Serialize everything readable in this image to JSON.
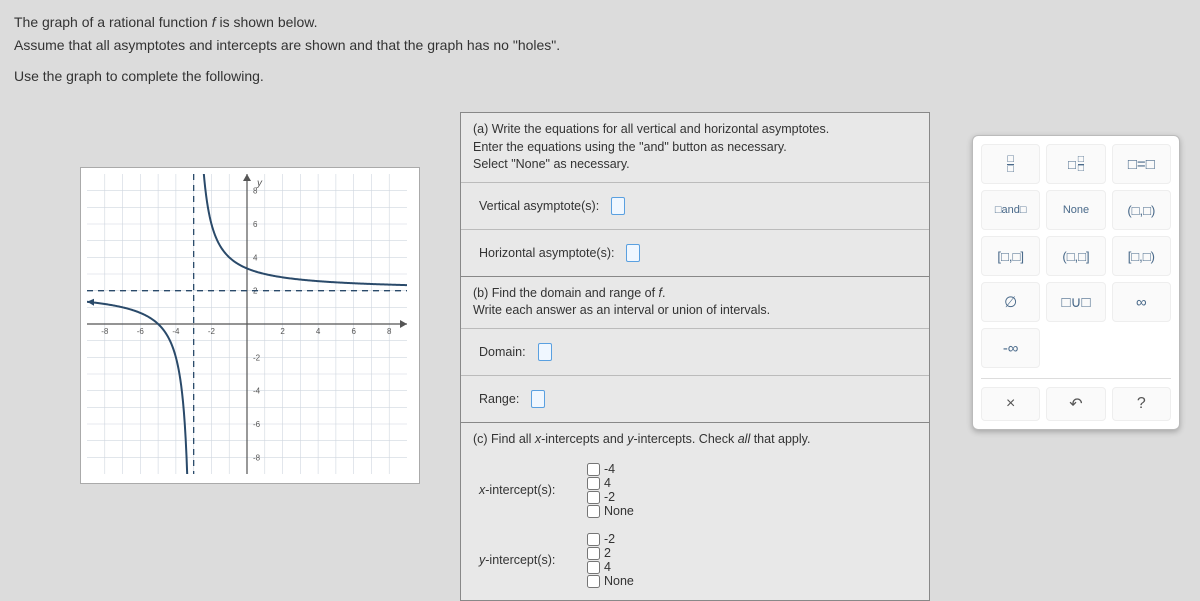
{
  "prompt": {
    "line1a": "The graph of a rational function ",
    "line1b": "f",
    "line1c": " is shown below.",
    "line2": "Assume that all asymptotes and intercepts are shown and that the graph has no \"holes\".",
    "line3": "Use the graph to complete the following."
  },
  "graph": {
    "x_ticks": [
      -8,
      -6,
      -4,
      -2,
      2,
      4,
      6,
      8
    ],
    "y_ticks": [
      8,
      6,
      4,
      2,
      -2,
      -4,
      -6,
      -8
    ],
    "axis_label_y": "y",
    "axis_label_x": "x",
    "grid_color": "#cfd6df",
    "axis_color": "#555",
    "tick_font_size": 8,
    "vertical_asymptote_x": -3,
    "horizontal_asymptote_y": 2,
    "asymptote_color": "#2a4a6a",
    "curve_color": "#2a4a6a",
    "curve_width": 2
  },
  "partA": {
    "header": "(a) Write the equations for all vertical and horizontal asymptotes.\nEnter the equations using the \"and\" button as necessary.\nSelect \"None\" as necessary.",
    "vertical_label": "Vertical asymptote(s):",
    "horizontal_label": "Horizontal asymptote(s):"
  },
  "partB": {
    "header1": "(b) Find the domain and range of ",
    "header_f": "f",
    "header2": ".",
    "subheader": "Write each answer as an interval or union of intervals.",
    "domain_label": "Domain:",
    "range_label": "Range:"
  },
  "partC": {
    "header": "(c) Find all x-intercepts and y-intercepts. Check all that apply.",
    "x_label": "x-intercept(s):",
    "y_label": "y-intercept(s):",
    "x_options": [
      "-4",
      "4",
      "-2",
      "None"
    ],
    "y_options": [
      "-2",
      "2",
      "4",
      "None"
    ]
  },
  "palette": {
    "buttons": [
      {
        "label": "frac",
        "display": "□/□"
      },
      {
        "label": "mixed",
        "display": "□ □/□"
      },
      {
        "label": "eq",
        "display": "□=□"
      },
      {
        "label": "and",
        "display": "□and□"
      },
      {
        "label": "none",
        "display": "None"
      },
      {
        "label": "open",
        "display": "(□,□)"
      },
      {
        "label": "closed",
        "display": "[□,□]"
      },
      {
        "label": "half1",
        "display": "(□,□]"
      },
      {
        "label": "half2",
        "display": "[□,□)"
      },
      {
        "label": "empty",
        "display": "∅"
      },
      {
        "label": "union",
        "display": "□∪□"
      },
      {
        "label": "inf",
        "display": "∞"
      },
      {
        "label": "neginf",
        "display": "-∞"
      }
    ],
    "bottom": {
      "clear": "×",
      "undo": "↶",
      "help": "?"
    }
  }
}
